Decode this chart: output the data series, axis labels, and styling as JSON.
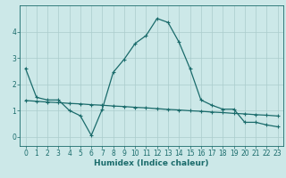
{
  "xlabel": "Humidex (Indice chaleur)",
  "background_color": "#cce8e8",
  "grid_color": "#aacccc",
  "line_color": "#1a6b6b",
  "line1_x": [
    0,
    1,
    2,
    3,
    4,
    5,
    6,
    7,
    8,
    9,
    10,
    11,
    12,
    13,
    14,
    15,
    16,
    17,
    18,
    19,
    20,
    21,
    22,
    23
  ],
  "line1_y": [
    2.6,
    1.5,
    1.4,
    1.4,
    1.0,
    0.8,
    0.05,
    1.05,
    2.45,
    2.95,
    3.55,
    3.85,
    4.5,
    4.35,
    3.6,
    2.6,
    1.4,
    1.2,
    1.05,
    1.05,
    0.55,
    0.55,
    0.45,
    0.38
  ],
  "line2_x": [
    0,
    1,
    2,
    3,
    4,
    5,
    6,
    7,
    8,
    9,
    10,
    11,
    12,
    13,
    14,
    15,
    16,
    17,
    18,
    19,
    20,
    21,
    22,
    23
  ],
  "line2_y": [
    1.38,
    1.35,
    1.32,
    1.3,
    1.27,
    1.25,
    1.22,
    1.2,
    1.17,
    1.15,
    1.12,
    1.1,
    1.07,
    1.04,
    1.02,
    0.99,
    0.97,
    0.94,
    0.92,
    0.89,
    0.87,
    0.84,
    0.82,
    0.79
  ],
  "ylim": [
    -0.35,
    5.0
  ],
  "xlim": [
    -0.5,
    23.5
  ],
  "yticks": [
    0,
    1,
    2,
    3,
    4
  ],
  "xticks": [
    0,
    1,
    2,
    3,
    4,
    5,
    6,
    7,
    8,
    9,
    10,
    11,
    12,
    13,
    14,
    15,
    16,
    17,
    18,
    19,
    20,
    21,
    22,
    23
  ],
  "fontsize_label": 6.5,
  "fontsize_tick": 5.5,
  "marker": "+",
  "markersize": 3.5,
  "linewidth": 0.9
}
